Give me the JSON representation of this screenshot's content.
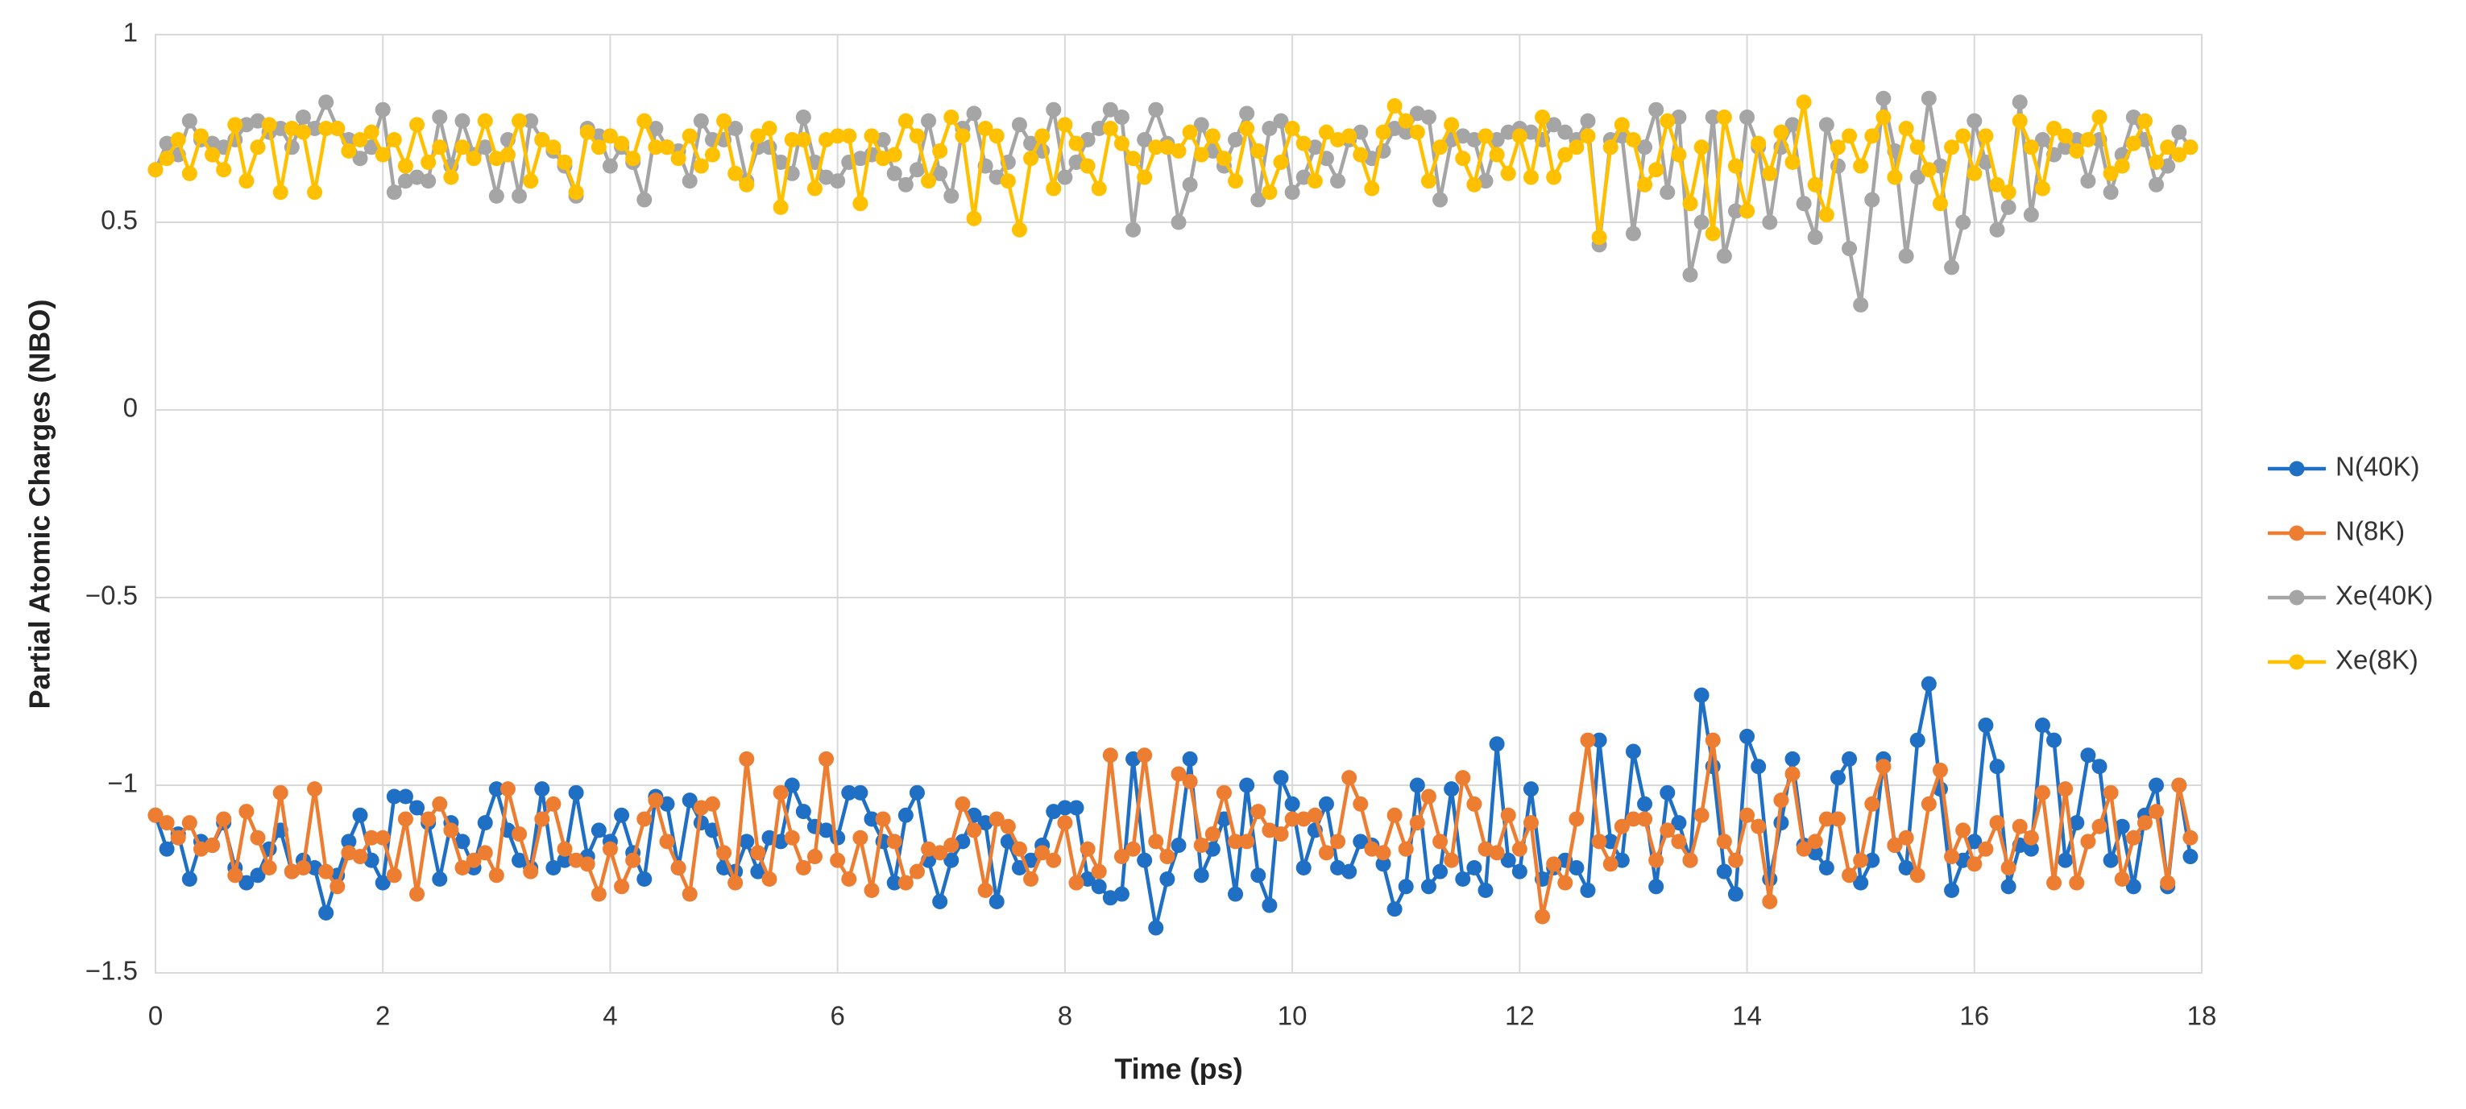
{
  "chart_data": {
    "type": "line",
    "xlabel": "Time (ps)",
    "ylabel": "Partial Atomic Charges (NBO)",
    "xlim": [
      0,
      18
    ],
    "xticks": [
      0,
      2,
      4,
      6,
      8,
      10,
      12,
      14,
      16,
      18
    ],
    "ylim": [
      -1.5,
      1
    ],
    "yticks": [
      {
        "value": -1.5,
        "label": "−1.5"
      },
      {
        "value": -1,
        "label": "−1"
      },
      {
        "value": -0.5,
        "label": "−0.5"
      },
      0,
      0.5,
      1
    ],
    "grid": true,
    "legend": "right",
    "x": [
      0,
      0.1,
      0.2,
      0.3,
      0.4,
      0.5,
      0.6,
      0.7,
      0.8,
      0.9,
      1,
      1.1,
      1.2,
      1.3,
      1.4,
      1.5,
      1.6,
      1.7,
      1.8,
      1.9,
      2,
      2.1,
      2.2,
      2.3,
      2.4,
      2.5,
      2.6,
      2.7,
      2.8,
      2.9,
      3,
      3.1,
      3.2,
      3.3,
      3.4,
      3.5,
      3.6,
      3.7,
      3.8,
      3.9,
      4,
      4.1,
      4.2,
      4.3,
      4.4,
      4.5,
      4.6,
      4.7,
      4.8,
      4.9,
      5,
      5.1,
      5.2,
      5.3,
      5.4,
      5.5,
      5.6,
      5.7,
      5.8,
      5.9,
      6,
      6.1,
      6.2,
      6.3,
      6.4,
      6.5,
      6.6,
      6.7,
      6.8,
      6.9,
      7,
      7.1,
      7.2,
      7.3,
      7.4,
      7.5,
      7.6,
      7.7,
      7.8,
      7.9,
      8,
      8.1,
      8.2,
      8.3,
      8.4,
      8.5,
      8.6,
      8.7,
      8.8,
      8.9,
      9,
      9.1,
      9.2,
      9.3,
      9.4,
      9.5,
      9.6,
      9.7,
      9.8,
      9.9,
      10,
      10.1,
      10.2,
      10.3,
      10.4,
      10.5,
      10.6,
      10.7,
      10.8,
      10.9,
      11,
      11.1,
      11.2,
      11.3,
      11.4,
      11.5,
      11.6,
      11.7,
      11.8,
      11.9,
      12,
      12.1,
      12.2,
      12.3,
      12.4,
      12.5,
      12.6,
      12.7,
      12.8,
      12.9,
      13,
      13.1,
      13.2,
      13.3,
      13.4,
      13.5,
      13.6,
      13.7,
      13.8,
      13.9,
      14,
      14.1,
      14.2,
      14.3,
      14.4,
      14.5,
      14.6,
      14.7,
      14.8,
      14.9,
      15,
      15.1,
      15.2,
      15.3,
      15.4,
      15.5,
      15.6,
      15.7,
      15.8,
      15.9,
      16,
      16.1,
      16.2,
      16.3,
      16.4,
      16.5,
      16.6,
      16.7,
      16.8,
      16.9,
      17,
      17.1,
      17.2,
      17.3,
      17.4,
      17.5,
      17.6,
      17.7,
      17.8,
      17.9
    ],
    "series": [
      {
        "name": "N(40K)",
        "color": "#1f6fc5",
        "values": [
          -1.08,
          -1.17,
          -1.13,
          -1.25,
          -1.15,
          -1.16,
          -1.1,
          -1.22,
          -1.26,
          -1.24,
          -1.17,
          -1.12,
          -1.23,
          -1.2,
          -1.22,
          -1.34,
          -1.24,
          -1.15,
          -1.08,
          -1.2,
          -1.26,
          -1.03,
          -1.03,
          -1.06,
          -1.1,
          -1.25,
          -1.1,
          -1.15,
          -1.22,
          -1.1,
          -1.01,
          -1.12,
          -1.2,
          -1.22,
          -1.01,
          -1.22,
          -1.2,
          -1.02,
          -1.19,
          -1.12,
          -1.15,
          -1.08,
          -1.18,
          -1.25,
          -1.03,
          -1.05,
          -1.22,
          -1.04,
          -1.1,
          -1.12,
          -1.22,
          -1.23,
          -1.15,
          -1.23,
          -1.14,
          -1.15,
          -1.0,
          -1.07,
          -1.11,
          -1.12,
          -1.14,
          -1.02,
          -1.02,
          -1.09,
          -1.15,
          -1.26,
          -1.08,
          -1.02,
          -1.2,
          -1.31,
          -1.2,
          -1.15,
          -1.08,
          -1.1,
          -1.31,
          -1.15,
          -1.22,
          -1.2,
          -1.16,
          -1.07,
          -1.06,
          -1.06,
          -1.25,
          -1.27,
          -1.3,
          -1.29,
          -0.93,
          -1.2,
          -1.38,
          -1.25,
          -1.16,
          -0.93,
          -1.24,
          -1.17,
          -1.09,
          -1.29,
          -1.0,
          -1.24,
          -1.32,
          -0.98,
          -1.05,
          -1.22,
          -1.12,
          -1.05,
          -1.22,
          -1.23,
          -1.15,
          -1.16,
          -1.21,
          -1.33,
          -1.27,
          -1.0,
          -1.27,
          -1.23,
          -1.01,
          -1.25,
          -1.22,
          -1.28,
          -0.89,
          -1.2,
          -1.23,
          -1.01,
          -1.25,
          -1.22,
          -1.2,
          -1.22,
          -1.28,
          -0.88,
          -1.15,
          -1.2,
          -0.91,
          -1.05,
          -1.27,
          -1.02,
          -1.1,
          -1.2,
          -0.76,
          -0.95,
          -1.23,
          -1.29,
          -0.87,
          -0.95,
          -1.25,
          -1.1,
          -0.93,
          -1.16,
          -1.18,
          -1.22,
          -0.98,
          -0.93,
          -1.26,
          -1.2,
          -0.93,
          -1.16,
          -1.22,
          -0.88,
          -0.73,
          -1.01,
          -1.28,
          -1.2,
          -1.15,
          -0.84,
          -0.95,
          -1.27,
          -1.16,
          -1.17,
          -0.84,
          -0.88,
          -1.2,
          -1.1,
          -0.92,
          -0.95,
          -1.2,
          -1.11,
          -1.27,
          -1.08,
          -1.0,
          -1.27,
          -1.0,
          -1.19
        ]
      },
      {
        "name": "N(8K)",
        "color": "#ed7d31",
        "values": [
          -1.08,
          -1.1,
          -1.14,
          -1.1,
          -1.17,
          -1.16,
          -1.09,
          -1.24,
          -1.07,
          -1.14,
          -1.22,
          -1.02,
          -1.23,
          -1.22,
          -1.01,
          -1.23,
          -1.27,
          -1.18,
          -1.19,
          -1.14,
          -1.14,
          -1.24,
          -1.09,
          -1.29,
          -1.09,
          -1.05,
          -1.12,
          -1.22,
          -1.2,
          -1.18,
          -1.24,
          -1.01,
          -1.13,
          -1.23,
          -1.09,
          -1.05,
          -1.17,
          -1.2,
          -1.21,
          -1.29,
          -1.17,
          -1.27,
          -1.2,
          -1.09,
          -1.04,
          -1.15,
          -1.22,
          -1.29,
          -1.06,
          -1.05,
          -1.18,
          -1.26,
          -0.93,
          -1.18,
          -1.25,
          -1.02,
          -1.14,
          -1.22,
          -1.19,
          -0.93,
          -1.2,
          -1.25,
          -1.14,
          -1.28,
          -1.09,
          -1.15,
          -1.26,
          -1.23,
          -1.17,
          -1.18,
          -1.16,
          -1.05,
          -1.12,
          -1.28,
          -1.09,
          -1.11,
          -1.17,
          -1.25,
          -1.18,
          -1.2,
          -1.1,
          -1.26,
          -1.17,
          -1.23,
          -0.92,
          -1.19,
          -1.17,
          -0.92,
          -1.15,
          -1.19,
          -0.97,
          -0.99,
          -1.16,
          -1.13,
          -1.02,
          -1.15,
          -1.15,
          -1.07,
          -1.12,
          -1.13,
          -1.09,
          -1.09,
          -1.08,
          -1.18,
          -1.15,
          -0.98,
          -1.05,
          -1.17,
          -1.18,
          -1.08,
          -1.17,
          -1.1,
          -1.03,
          -1.15,
          -1.2,
          -0.98,
          -1.05,
          -1.17,
          -1.18,
          -1.08,
          -1.17,
          -1.1,
          -1.35,
          -1.21,
          -1.26,
          -1.09,
          -0.88,
          -1.15,
          -1.21,
          -1.11,
          -1.09,
          -1.09,
          -1.2,
          -1.12,
          -1.15,
          -1.2,
          -1.08,
          -0.88,
          -1.15,
          -1.2,
          -1.08,
          -1.11,
          -1.31,
          -1.04,
          -0.97,
          -1.17,
          -1.15,
          -1.09,
          -1.09,
          -1.24,
          -1.2,
          -1.05,
          -0.95,
          -1.16,
          -1.14,
          -1.24,
          -1.05,
          -0.96,
          -1.19,
          -1.12,
          -1.21,
          -1.17,
          -1.1,
          -1.22,
          -1.11,
          -1.14,
          -1.02,
          -1.26,
          -1.01,
          -1.26,
          -1.15,
          -1.11,
          -1.02,
          -1.25,
          -1.14,
          -1.1,
          -1.07,
          -1.26,
          -1.0,
          -1.14
        ]
      },
      {
        "name": "Xe(40K)",
        "color": "#a5a5a5",
        "values": [
          0.64,
          0.71,
          0.68,
          0.77,
          0.72,
          0.71,
          0.7,
          0.72,
          0.76,
          0.77,
          0.74,
          0.75,
          0.7,
          0.78,
          0.75,
          0.82,
          0.75,
          0.72,
          0.67,
          0.7,
          0.8,
          0.58,
          0.61,
          0.62,
          0.61,
          0.78,
          0.65,
          0.77,
          0.68,
          0.7,
          0.57,
          0.72,
          0.57,
          0.77,
          0.72,
          0.69,
          0.65,
          0.57,
          0.75,
          0.73,
          0.65,
          0.7,
          0.66,
          0.56,
          0.75,
          0.7,
          0.69,
          0.61,
          0.77,
          0.72,
          0.72,
          0.75,
          0.61,
          0.7,
          0.7,
          0.66,
          0.63,
          0.78,
          0.66,
          0.62,
          0.61,
          0.66,
          0.67,
          0.68,
          0.72,
          0.63,
          0.6,
          0.64,
          0.77,
          0.63,
          0.57,
          0.75,
          0.79,
          0.65,
          0.62,
          0.66,
          0.76,
          0.71,
          0.69,
          0.8,
          0.62,
          0.66,
          0.72,
          0.75,
          0.8,
          0.78,
          0.48,
          0.72,
          0.8,
          0.71,
          0.5,
          0.6,
          0.76,
          0.69,
          0.65,
          0.72,
          0.79,
          0.56,
          0.75,
          0.77,
          0.58,
          0.62,
          0.7,
          0.67,
          0.61,
          0.72,
          0.74,
          0.67,
          0.69,
          0.75,
          0.74,
          0.79,
          0.78,
          0.56,
          0.72,
          0.73,
          0.72,
          0.61,
          0.72,
          0.74,
          0.75,
          0.74,
          0.72,
          0.76,
          0.74,
          0.72,
          0.77,
          0.44,
          0.72,
          0.73,
          0.47,
          0.7,
          0.8,
          0.58,
          0.78,
          0.36,
          0.5,
          0.78,
          0.41,
          0.53,
          0.78,
          0.7,
          0.5,
          0.7,
          0.76,
          0.55,
          0.46,
          0.76,
          0.65,
          0.43,
          0.28,
          0.56,
          0.83,
          0.69,
          0.41,
          0.62,
          0.83,
          0.65,
          0.38,
          0.5,
          0.77,
          0.66,
          0.48,
          0.54,
          0.82,
          0.52,
          0.72,
          0.68,
          0.7,
          0.72,
          0.61,
          0.72,
          0.58,
          0.68,
          0.78,
          0.72,
          0.6,
          0.65,
          0.74,
          0.7
        ]
      },
      {
        "name": "Xe(8K)",
        "color": "#ffc000",
        "values": [
          0.64,
          0.67,
          0.72,
          0.63,
          0.73,
          0.68,
          0.64,
          0.76,
          0.61,
          0.7,
          0.76,
          0.58,
          0.75,
          0.74,
          0.58,
          0.75,
          0.75,
          0.69,
          0.72,
          0.74,
          0.68,
          0.72,
          0.65,
          0.76,
          0.66,
          0.7,
          0.62,
          0.7,
          0.67,
          0.77,
          0.67,
          0.68,
          0.77,
          0.61,
          0.72,
          0.7,
          0.66,
          0.58,
          0.74,
          0.7,
          0.73,
          0.71,
          0.67,
          0.77,
          0.7,
          0.7,
          0.67,
          0.73,
          0.65,
          0.68,
          0.77,
          0.63,
          0.6,
          0.73,
          0.75,
          0.54,
          0.72,
          0.72,
          0.59,
          0.72,
          0.73,
          0.73,
          0.55,
          0.73,
          0.67,
          0.68,
          0.77,
          0.73,
          0.61,
          0.69,
          0.78,
          0.73,
          0.51,
          0.75,
          0.73,
          0.61,
          0.48,
          0.67,
          0.73,
          0.59,
          0.76,
          0.71,
          0.65,
          0.59,
          0.75,
          0.71,
          0.67,
          0.62,
          0.7,
          0.7,
          0.69,
          0.74,
          0.68,
          0.73,
          0.67,
          0.61,
          0.75,
          0.69,
          0.58,
          0.66,
          0.75,
          0.71,
          0.61,
          0.74,
          0.72,
          0.73,
          0.68,
          0.59,
          0.74,
          0.81,
          0.77,
          0.74,
          0.61,
          0.7,
          0.76,
          0.67,
          0.6,
          0.73,
          0.68,
          0.63,
          0.73,
          0.62,
          0.78,
          0.62,
          0.68,
          0.7,
          0.73,
          0.46,
          0.7,
          0.76,
          0.72,
          0.6,
          0.64,
          0.77,
          0.68,
          0.55,
          0.7,
          0.47,
          0.78,
          0.65,
          0.53,
          0.71,
          0.63,
          0.74,
          0.66,
          0.82,
          0.6,
          0.52,
          0.7,
          0.73,
          0.65,
          0.73,
          0.78,
          0.62,
          0.75,
          0.7,
          0.64,
          0.55,
          0.7,
          0.73,
          0.63,
          0.73,
          0.6,
          0.58,
          0.77,
          0.7,
          0.59,
          0.75,
          0.73,
          0.69,
          0.72,
          0.78,
          0.63,
          0.65,
          0.71,
          0.77,
          0.66,
          0.7,
          0.68,
          0.7
        ]
      }
    ]
  }
}
